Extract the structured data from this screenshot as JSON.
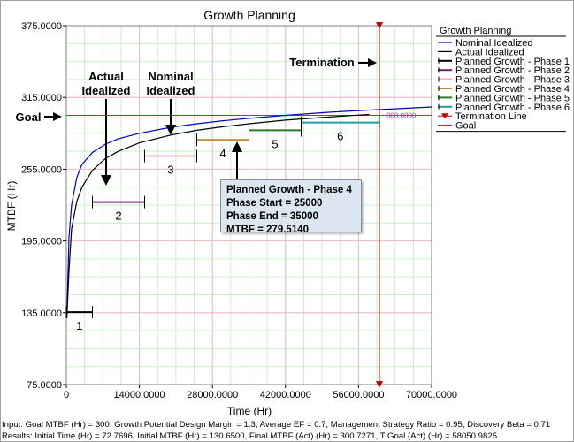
{
  "chart_data": {
    "type": "line",
    "title": "Growth Planning",
    "xlabel": "Time (Hr)",
    "ylabel": "MTBF (Hr)",
    "xlim": [
      0,
      70000
    ],
    "ylim": [
      75,
      375
    ],
    "x_ticks": [
      "0",
      "14000.0000",
      "28000.0000",
      "42000.0000",
      "56000.0000",
      "70000.0000"
    ],
    "y_ticks": [
      "75.0000",
      "135.0000",
      "195.0000",
      "255.0000",
      "315.0000",
      "375.0000"
    ],
    "grid": true,
    "legend_position": "right",
    "legend_title": "Growth Planning",
    "series": [
      {
        "name": "Nominal Idealized",
        "color": "#0000cc",
        "x": [
          100,
          500,
          1000,
          2000,
          3000,
          5000,
          7500,
          10000,
          14000,
          20000,
          25000,
          30000,
          35000,
          42000,
          50000,
          56000,
          63000,
          70000
        ],
        "y": [
          130.65,
          198,
          225,
          248,
          259,
          269,
          276,
          280.5,
          285,
          290,
          293,
          295.5,
          297.5,
          300,
          302.5,
          304,
          305.5,
          307
        ]
      },
      {
        "name": "Actual Idealized",
        "color": "#000000",
        "x": [
          100,
          500,
          1000,
          2000,
          3000,
          5000,
          7500,
          10000,
          14000,
          20000,
          25000,
          30000,
          35000,
          42000,
          50000,
          56000,
          58050.9825
        ],
        "y": [
          130.65,
          170,
          205,
          228,
          240,
          254,
          264,
          270,
          277,
          283.5,
          287.5,
          290.5,
          293,
          296,
          298.5,
          300.2,
          300.7271
        ]
      }
    ],
    "phases": [
      {
        "label": "1",
        "name": "Planned Growth - Phase 1",
        "color": "#000000",
        "start": 0,
        "end": 5000,
        "mtbf": 135.5
      },
      {
        "label": "2",
        "name": "Planned Growth - Phase 2",
        "color": "#6a1f7a",
        "start": 5000,
        "end": 15000,
        "mtbf": 227.5
      },
      {
        "label": "3",
        "name": "Planned Growth - Phase 3",
        "color": "#f0b0b8",
        "start": 15000,
        "end": 25000,
        "mtbf": 266
      },
      {
        "label": "4",
        "name": "Planned Growth - Phase 4",
        "color": "#c08a30",
        "start": 25000,
        "end": 35000,
        "mtbf": 279.514
      },
      {
        "label": "5",
        "name": "Planned Growth - Phase 5",
        "color": "#2a7a2a",
        "start": 35000,
        "end": 45000,
        "mtbf": 287.5
      },
      {
        "label": "6",
        "name": "Planned Growth - Phase 6",
        "color": "#20a0a0",
        "start": 45000,
        "end": 60000,
        "mtbf": 294
      }
    ],
    "termination": {
      "name": "Termination Line",
      "x": 60000,
      "color": "#c00000"
    },
    "goal": {
      "name": "Goal",
      "y": 300,
      "label": "300.0000",
      "color": "#e02020"
    }
  },
  "annotations": {
    "actual_idealized": [
      "Actual",
      "Idealized"
    ],
    "nominal_idealized": [
      "Nominal",
      "Idealized"
    ],
    "termination": "Termination",
    "goal": "Goal"
  },
  "info_box": {
    "line1": "Planned Growth - Phase 4",
    "line2": "Phase Start = 25000",
    "line3": "Phase End = 35000",
    "line4": "MTBF = 279.5140"
  },
  "footer": {
    "input": "Input: Goal MTBF (Hr) = 300, Growth Potential Design Margin = 1.3, Average EF = 0.7, Management Strategy Ratio = 0.95, Discovery Beta = 0.71",
    "results": "Results: Initial Time (Hr) = 72.7696, Initial MTBF (Hr) = 130.6500, Final MTBF (Act) (Hr) = 300.7271, T Goal (Act) (Hr) = 58050.9825"
  }
}
